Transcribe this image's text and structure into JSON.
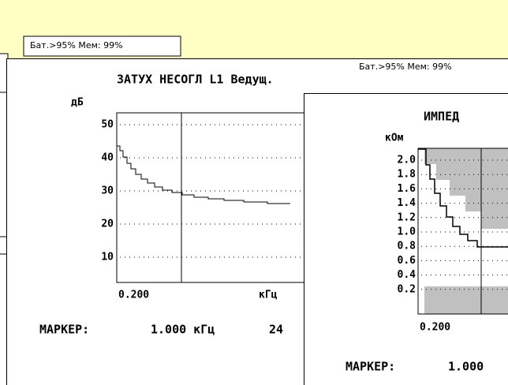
{
  "back_window": {
    "status": "Бат.>95% Мем: 99%"
  },
  "main_window": {
    "status": "Бат.>95% Мем: 99%",
    "title": "ЗАТУХ НЕСОГЛ  L1 Ведущ.",
    "y_unit": "дБ",
    "yticks": [
      "50",
      "40",
      "30",
      "20",
      "10"
    ],
    "x_start": "0.200",
    "x_unit": "кГц",
    "marker_label": "МАРКЕР:",
    "marker_value": "1.000 кГц",
    "reading": "24"
  },
  "front_window": {
    "title": "ИМПЕД",
    "y_unit": "кОм",
    "yticks": [
      "2.0",
      "1.8",
      "1.6",
      "1.4",
      "1.2",
      "1.0",
      "0.8",
      "0.6",
      "0.4",
      "0.2"
    ],
    "x_start": "0.200",
    "marker_label": "МАРКЕР:",
    "marker_value": "1.000"
  }
}
